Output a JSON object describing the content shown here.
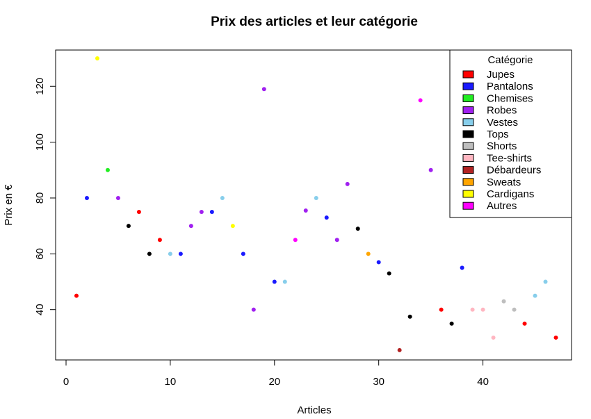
{
  "chart_data": {
    "type": "scatter",
    "title": "Prix des articles et leur catégorie",
    "xlabel": "Articles",
    "ylabel": "Prix en €",
    "xlim": [
      -1,
      48.5
    ],
    "ylim": [
      22,
      133
    ],
    "x_ticks": [
      0,
      10,
      20,
      30,
      40
    ],
    "y_ticks": [
      40,
      60,
      80,
      100,
      120
    ],
    "grid": false,
    "legend": {
      "title": "Catégorie",
      "position": "top-right",
      "entries": [
        {
          "name": "Jupes",
          "color": "#ff0000"
        },
        {
          "name": "Pantalons",
          "color": "#1a1aff"
        },
        {
          "name": "Chemises",
          "color": "#22ee22"
        },
        {
          "name": "Robes",
          "color": "#a020f0"
        },
        {
          "name": "Vestes",
          "color": "#87ceeb"
        },
        {
          "name": "Tops",
          "color": "#000000"
        },
        {
          "name": "Shorts",
          "color": "#bebebe"
        },
        {
          "name": "Tee-shirts",
          "color": "#ffb6c1"
        },
        {
          "name": "Débardeurs",
          "color": "#b22222"
        },
        {
          "name": "Sweats",
          "color": "#ffa500"
        },
        {
          "name": "Cardigans",
          "color": "#ffff00"
        },
        {
          "name": "Autres",
          "color": "#ff00ff"
        }
      ]
    },
    "points": [
      {
        "x": 1,
        "y": 45,
        "category": "Jupes"
      },
      {
        "x": 2,
        "y": 80,
        "category": "Pantalons"
      },
      {
        "x": 3,
        "y": 130,
        "category": "Cardigans"
      },
      {
        "x": 4,
        "y": 90,
        "category": "Chemises"
      },
      {
        "x": 5,
        "y": 80,
        "category": "Robes"
      },
      {
        "x": 6,
        "y": 70,
        "category": "Tops"
      },
      {
        "x": 7,
        "y": 75,
        "category": "Jupes"
      },
      {
        "x": 8,
        "y": 60,
        "category": "Tops"
      },
      {
        "x": 9,
        "y": 65,
        "category": "Jupes"
      },
      {
        "x": 10,
        "y": 60,
        "category": "Vestes"
      },
      {
        "x": 11,
        "y": 60,
        "category": "Pantalons"
      },
      {
        "x": 12,
        "y": 70,
        "category": "Robes"
      },
      {
        "x": 13,
        "y": 75,
        "category": "Robes"
      },
      {
        "x": 14,
        "y": 75,
        "category": "Pantalons"
      },
      {
        "x": 15,
        "y": 80,
        "category": "Vestes"
      },
      {
        "x": 16,
        "y": 70,
        "category": "Cardigans"
      },
      {
        "x": 17,
        "y": 60,
        "category": "Pantalons"
      },
      {
        "x": 18,
        "y": 40,
        "category": "Robes"
      },
      {
        "x": 19,
        "y": 119,
        "category": "Robes"
      },
      {
        "x": 20,
        "y": 50,
        "category": "Pantalons"
      },
      {
        "x": 21,
        "y": 50,
        "category": "Vestes"
      },
      {
        "x": 22,
        "y": 65,
        "category": "Autres"
      },
      {
        "x": 23,
        "y": 75.5,
        "category": "Robes"
      },
      {
        "x": 24,
        "y": 80,
        "category": "Vestes"
      },
      {
        "x": 25,
        "y": 73,
        "category": "Pantalons"
      },
      {
        "x": 26,
        "y": 65,
        "category": "Robes"
      },
      {
        "x": 27,
        "y": 85,
        "category": "Robes"
      },
      {
        "x": 28,
        "y": 69,
        "category": "Tops"
      },
      {
        "x": 29,
        "y": 60,
        "category": "Sweats"
      },
      {
        "x": 30,
        "y": 57,
        "category": "Pantalons"
      },
      {
        "x": 31,
        "y": 53,
        "category": "Tops"
      },
      {
        "x": 32,
        "y": 25.5,
        "category": "Débardeurs"
      },
      {
        "x": 33,
        "y": 37.5,
        "category": "Tops"
      },
      {
        "x": 34,
        "y": 115,
        "category": "Autres"
      },
      {
        "x": 35,
        "y": 90,
        "category": "Robes"
      },
      {
        "x": 36,
        "y": 40,
        "category": "Jupes"
      },
      {
        "x": 37,
        "y": 35,
        "category": "Tops"
      },
      {
        "x": 38,
        "y": 55,
        "category": "Pantalons"
      },
      {
        "x": 39,
        "y": 40,
        "category": "Tee-shirts"
      },
      {
        "x": 40,
        "y": 40,
        "category": "Tee-shirts"
      },
      {
        "x": 41,
        "y": 30,
        "category": "Tee-shirts"
      },
      {
        "x": 42,
        "y": 43,
        "category": "Shorts"
      },
      {
        "x": 43,
        "y": 40,
        "category": "Shorts"
      },
      {
        "x": 44,
        "y": 35,
        "category": "Jupes"
      },
      {
        "x": 45,
        "y": 45,
        "category": "Vestes"
      },
      {
        "x": 46,
        "y": 50,
        "category": "Vestes"
      },
      {
        "x": 47,
        "y": 30,
        "category": "Jupes"
      }
    ]
  }
}
